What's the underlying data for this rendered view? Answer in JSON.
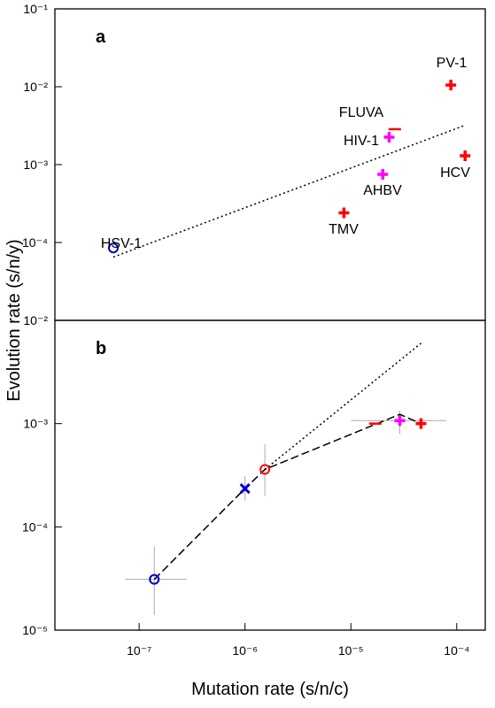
{
  "chart_data": [
    {
      "type": "scatter",
      "panel_label": "a",
      "xlim": [
        1.6e-08,
        0.000186
      ],
      "ylim": [
        1e-05,
        0.1
      ],
      "log_x": true,
      "log_y": true,
      "yticks": [
        {
          "value": 0.1,
          "label": "10⁻¹"
        },
        {
          "value": 0.01,
          "label": "10⁻²"
        },
        {
          "value": 0.001,
          "label": "10⁻³"
        },
        {
          "value": 0.0001,
          "label": "10⁻⁴"
        }
      ],
      "points": [
        {
          "label": "HSV-1",
          "x": 5.7e-08,
          "y": 8.5e-05,
          "color": "#0000cc",
          "marker": "circle"
        },
        {
          "label": "TMV",
          "x": 8.6e-06,
          "y": 0.00024,
          "color": "#ff0000",
          "marker": "plus"
        },
        {
          "label": "AHBV",
          "x": 2e-05,
          "y": 0.00075,
          "color": "#ff00ff",
          "marker": "plus"
        },
        {
          "label": "HIV-1",
          "x": 2.3e-05,
          "y": 0.00225,
          "color": "#ff00ff",
          "marker": "plus"
        },
        {
          "label": "FLUVA",
          "x": 2.6e-05,
          "y": 0.00285,
          "color": "#ff0000",
          "marker": "dash"
        },
        {
          "label": "PV-1",
          "x": 8.8e-05,
          "y": 0.0105,
          "color": "#ff0000",
          "marker": "plus"
        },
        {
          "label": "HCV",
          "x": 0.00012,
          "y": 0.0013,
          "color": "#ff0000",
          "marker": "plus"
        }
      ],
      "fit": {
        "x": [
          5.7e-08,
          0.00012
        ],
        "y": [
          6.5e-05,
          0.0032
        ]
      }
    },
    {
      "type": "scatter",
      "panel_label": "b",
      "x_label": "Mutation rate (s/n/c)",
      "y_label": "Evolution rate (s/n/y)",
      "xlim": [
        1.6e-08,
        0.000186
      ],
      "ylim": [
        1e-05,
        0.01
      ],
      "log_x": true,
      "log_y": true,
      "xticks": [
        {
          "value": 1e-07,
          "label": "10⁻⁷"
        },
        {
          "value": 1e-06,
          "label": "10⁻⁶"
        },
        {
          "value": 1e-05,
          "label": "10⁻⁵"
        },
        {
          "value": 0.0001,
          "label": "10⁻⁴"
        }
      ],
      "yticks": [
        {
          "value": 0.01,
          "label": "10⁻²"
        },
        {
          "value": 0.001,
          "label": "10⁻³"
        },
        {
          "value": 0.0001,
          "label": "10⁻⁴"
        },
        {
          "value": 1e-05,
          "label": "10⁻⁵"
        }
      ],
      "points": [
        {
          "x": 1.39e-07,
          "y": 3.1e-05,
          "color": "#0000cc",
          "marker": "circle",
          "xerr": [
            7.4e-08,
            2.8e-07
          ],
          "yerr": [
            1.4e-05,
            6.5e-05
          ]
        },
        {
          "x": 1e-06,
          "y": 0.000235,
          "color": "#0000cc",
          "marker": "x",
          "yerr": [
            0.00018,
            0.00031
          ]
        },
        {
          "x": 1.54e-06,
          "y": 0.00036,
          "color": "#ff0000",
          "marker": "circle",
          "yerr": [
            0.0002,
            0.00063
          ]
        },
        {
          "x": 1.7e-05,
          "y": 0.001,
          "color": "#ff0000",
          "marker": "dash"
        },
        {
          "x": 2.9e-05,
          "y": 0.00107,
          "color": "#ff00ff",
          "marker": "plus",
          "xerr": [
            1e-05,
            8e-05
          ],
          "yerr": [
            0.0008,
            0.00134
          ]
        },
        {
          "x": 4.6e-05,
          "y": 0.001,
          "color": "#ff0000",
          "marker": "plus"
        }
      ],
      "trend": {
        "x": [
          1.39e-07,
          1e-06,
          1.54e-06,
          2.9e-05,
          4.6e-05
        ],
        "y": [
          3.1e-05,
          0.000235,
          0.00036,
          0.00123,
          0.001
        ]
      },
      "fit": {
        "x": [
          1.54e-06,
          4.6e-05
        ],
        "y": [
          0.00036,
          0.006
        ]
      }
    }
  ]
}
